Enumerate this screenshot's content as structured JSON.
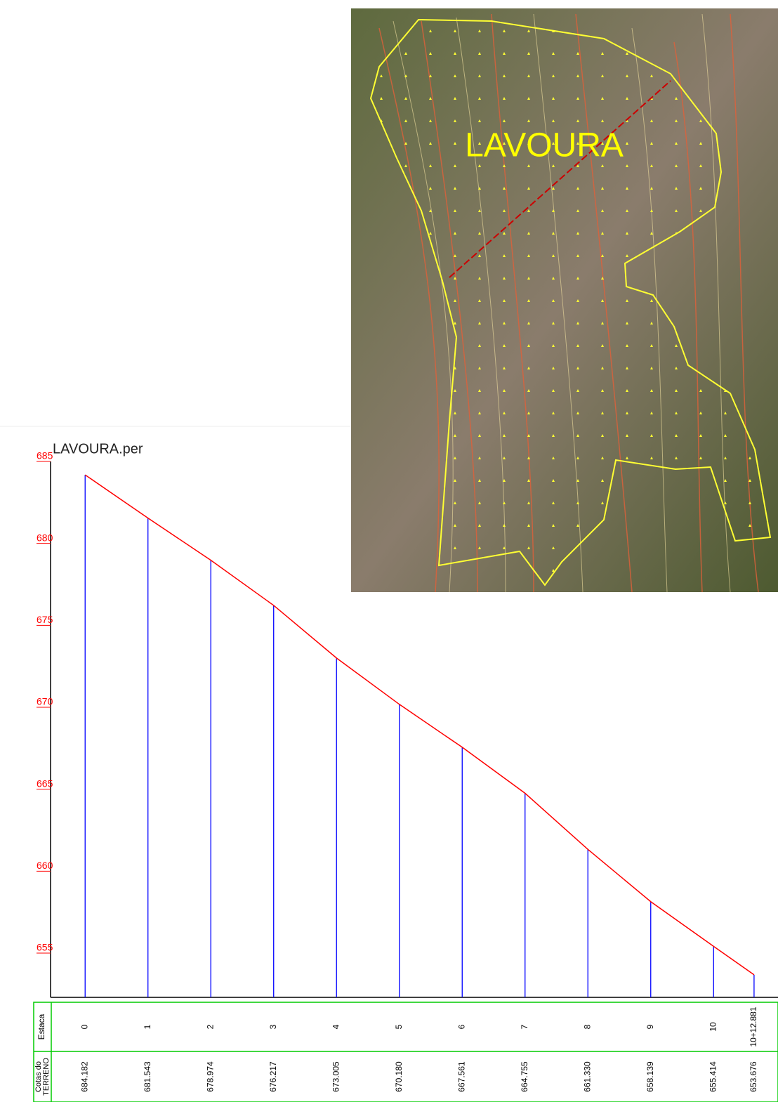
{
  "chart_data": {
    "type": "line",
    "title": "LAVOURA.per",
    "x": [
      0,
      20,
      40,
      60,
      80,
      100,
      120,
      140,
      160,
      180,
      200,
      212.881
    ],
    "xticks": [
      {
        "value": 0,
        "label": "0"
      },
      {
        "value": 20,
        "label": "1"
      },
      {
        "value": 40,
        "label": "2"
      },
      {
        "value": 60,
        "label": "3"
      },
      {
        "value": 80,
        "label": "4"
      },
      {
        "value": 100,
        "label": "5"
      },
      {
        "value": 120,
        "label": "6"
      },
      {
        "value": 140,
        "label": "7"
      },
      {
        "value": 160,
        "label": "8"
      },
      {
        "value": 180,
        "label": "9"
      },
      {
        "value": 200,
        "label": "10"
      },
      {
        "value": 212.881,
        "label": "10+12.881"
      }
    ],
    "xlim": [
      -11,
      220.5
    ],
    "values": [
      684.182,
      681.543,
      678.974,
      676.217,
      673.005,
      670.18,
      667.561,
      664.755,
      661.33,
      658.139,
      655.414,
      653.676
    ],
    "value_labels": [
      "684.182",
      "681.543",
      "678.974",
      "676.217",
      "673.005",
      "670.180",
      "667.561",
      "664.755",
      "661.330",
      "658.139",
      "655.414",
      "653.676"
    ],
    "color": "#ff0000",
    "drop_color": "#0000ff",
    "axis_label_color": "#ff0000",
    "table_color": "#00cc00",
    "ylim": [
      652.3,
      685
    ],
    "yticks": [
      655,
      660,
      665,
      670,
      675,
      680,
      685
    ],
    "row_labels": {
      "station": "Estaca",
      "elevation": [
        "Cotas do",
        "TERRENO"
      ]
    }
  },
  "map": {
    "label": "LAVOURA"
  }
}
